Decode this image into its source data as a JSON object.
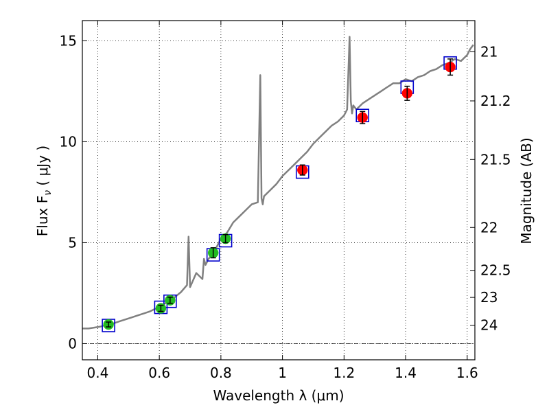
{
  "chart_data": {
    "type": "scatter",
    "title": "",
    "xlabel": "Wavelength  λ (μm)",
    "ylabel": "Flux  F",
    "ylabel_sub": "ν",
    "ylabel_unit": " ( μJy )",
    "y2label": "Magnitude (AB)",
    "xlim": [
      0.35,
      1.625
    ],
    "ylim": [
      -0.8,
      16.0
    ],
    "grid": true,
    "x_ticks": [
      0.4,
      0.6,
      0.8,
      1.0,
      1.2,
      1.4,
      1.6
    ],
    "x_tick_labels": [
      "0.4",
      "0.6",
      "0.8",
      "1",
      "1.2",
      "1.4",
      "1.6"
    ],
    "y_ticks": [
      0,
      5,
      10,
      15
    ],
    "y_tick_labels": [
      "0",
      "5",
      "10",
      "15"
    ],
    "y2_tick_labels": [
      "21",
      "21.2",
      "21.5",
      "22",
      "22.5",
      "23",
      "24"
    ],
    "y2_tick_values": [
      21,
      21.2,
      21.5,
      22,
      22.5,
      23,
      24
    ],
    "colors": {
      "spectrum": "#808080",
      "optical_points": "#22bb22",
      "nir_points": "#ff0000",
      "model_boxes": "#0000cc",
      "error_bars": "#000000"
    },
    "series": [
      {
        "marker": "line",
        "x": [
          0.35,
          0.37,
          0.39,
          0.41,
          0.43,
          0.45,
          0.47,
          0.49,
          0.51,
          0.53,
          0.55,
          0.57,
          0.59,
          0.61,
          0.63,
          0.65,
          0.67,
          0.69,
          0.695,
          0.7,
          0.72,
          0.74,
          0.745,
          0.75,
          0.76,
          0.78,
          0.8,
          0.82,
          0.84,
          0.86,
          0.88,
          0.9,
          0.92,
          0.928,
          0.932,
          0.936,
          0.94,
          0.96,
          0.98,
          1.0,
          1.02,
          1.04,
          1.06,
          1.08,
          1.1,
          1.12,
          1.14,
          1.16,
          1.18,
          1.2,
          1.21,
          1.218,
          1.222,
          1.226,
          1.23,
          1.24,
          1.26,
          1.28,
          1.3,
          1.32,
          1.34,
          1.36,
          1.38,
          1.4,
          1.42,
          1.44,
          1.46,
          1.48,
          1.5,
          1.52,
          1.54,
          1.56,
          1.58,
          1.6,
          1.61,
          1.62
        ],
        "y": [
          0.75,
          0.75,
          0.8,
          0.85,
          0.95,
          1.0,
          1.1,
          1.2,
          1.3,
          1.4,
          1.5,
          1.6,
          1.75,
          1.9,
          2.1,
          2.3,
          2.55,
          2.9,
          5.3,
          2.8,
          3.5,
          3.2,
          4.2,
          3.9,
          4.2,
          4.6,
          5.2,
          5.5,
          6.0,
          6.3,
          6.6,
          6.9,
          7.0,
          13.3,
          7.2,
          6.9,
          7.3,
          7.6,
          7.9,
          8.3,
          8.6,
          8.9,
          9.2,
          9.5,
          9.9,
          10.2,
          10.5,
          10.8,
          11.0,
          11.3,
          11.6,
          15.2,
          12.0,
          11.4,
          11.8,
          11.6,
          11.9,
          12.1,
          12.3,
          12.5,
          12.7,
          12.9,
          12.9,
          13.1,
          13.0,
          13.2,
          13.3,
          13.5,
          13.6,
          13.8,
          13.9,
          14.1,
          14.0,
          14.3,
          14.6,
          14.8
        ]
      },
      {
        "marker": "circle",
        "x": [
          0.435,
          0.605,
          0.635,
          0.775,
          0.815
        ],
        "y": [
          0.95,
          1.75,
          2.15,
          4.5,
          5.2
        ],
        "yerr": [
          0.12,
          0.15,
          0.15,
          0.25,
          0.2
        ]
      },
      {
        "marker": "circle",
        "x": [
          1.065,
          1.26,
          1.405,
          1.545
        ],
        "y": [
          8.6,
          11.2,
          12.4,
          13.7
        ],
        "yerr": [
          0.25,
          0.3,
          0.35,
          0.4
        ]
      },
      {
        "marker": "square",
        "x": [
          0.435,
          0.605,
          0.635,
          0.775,
          0.815,
          1.065,
          1.26,
          1.405,
          1.545
        ],
        "y": [
          0.9,
          1.8,
          2.1,
          4.4,
          5.1,
          8.5,
          11.3,
          12.7,
          13.9
        ]
      }
    ]
  }
}
